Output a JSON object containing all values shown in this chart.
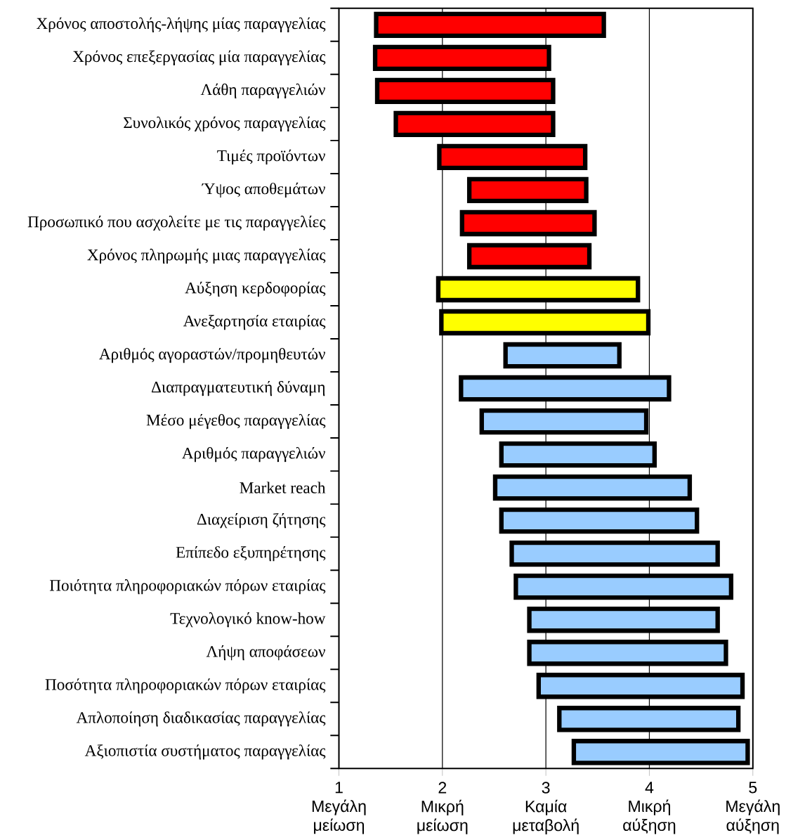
{
  "chart_data": {
    "type": "bar",
    "orientation": "horizontal",
    "grid": "x",
    "categories": [
      "Χρόνος αποστολής-λήψης μίας παραγγελίας",
      "Χρόνος επεξεργασίας μία παραγγελίας",
      "Λάθη παραγγελιών",
      "Συνολικός χρόνος παραγγελίας",
      "Τιμές προϊόντων",
      "Ύψος αποθεμάτων",
      "Προσωπικό που ασχολείτε με τις παραγγελίες",
      "Χρόνος πληρωμής μιας παραγγελίας",
      "Αύξηση κερδοφορίας",
      "Ανεξαρτησία εταιρίας",
      "Αριθμός αγοραστών/προμηθευτών",
      "Διαπραγματευτική δύναμη",
      "Μέσο μέγεθος παραγγελίας",
      "Αριθμός παραγγελιών",
      "Market reach",
      "Διαχείριση ζήτησης",
      "Επίπεδο εξυπηρέτησης",
      "Ποιότητα πληροφοριακών πόρων εταιρίας",
      "Τεχνολογικό know-how",
      "Λήψη αποφάσεων",
      "Ποσότητα πληροφοριακών πόρων εταιρίας",
      "Απλοποίηση διαδικασίας παραγγελίας",
      "Αξιοπιστία συστήματος παραγγελίας"
    ],
    "base": [
      1.36,
      1.35,
      1.37,
      1.55,
      1.97,
      2.26,
      2.19,
      2.26,
      1.96,
      1.99,
      2.61,
      2.18,
      2.38,
      2.57,
      2.51,
      2.57,
      2.67,
      2.71,
      2.84,
      2.84,
      2.93,
      3.13,
      3.27
    ],
    "values": [
      2.2,
      1.68,
      1.7,
      1.52,
      1.41,
      1.13,
      1.28,
      1.16,
      1.93,
      2.0,
      1.1,
      2.01,
      1.59,
      1.48,
      1.88,
      1.89,
      1.99,
      2.08,
      1.82,
      1.9,
      1.97,
      1.73,
      1.68
    ],
    "colors": [
      "#ff0000",
      "#ff0000",
      "#ff0000",
      "#ff0000",
      "#ff0000",
      "#ff0000",
      "#ff0000",
      "#ff0000",
      "#ffff00",
      "#ffff00",
      "#99ccff",
      "#99ccff",
      "#99ccff",
      "#99ccff",
      "#99ccff",
      "#99ccff",
      "#99ccff",
      "#99ccff",
      "#99ccff",
      "#99ccff",
      "#99ccff",
      "#99ccff",
      "#99ccff"
    ],
    "xlim": [
      1,
      5
    ],
    "xticks": [
      {
        "value": 1,
        "label": "1 Μεγάλη μείωση"
      },
      {
        "value": 2,
        "label": "2 Μικρή μείωση"
      },
      {
        "value": 3,
        "label": "3 Καμία μεταβολή"
      },
      {
        "value": 4,
        "label": "4 Μικρή αύξηση"
      },
      {
        "value": 5,
        "label": "5 Μεγάλη αύξηση"
      }
    ]
  }
}
